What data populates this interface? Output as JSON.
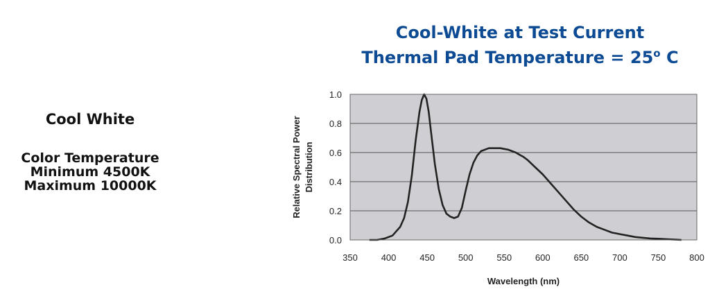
{
  "left_panel": {
    "heading": "Cool White",
    "lines": [
      "Color Temperature",
      "Minimum 4500K",
      "Maximum 10000K"
    ]
  },
  "chart_data": {
    "type": "line",
    "title_line1": "Cool-White at Test Current",
    "title_line2_text": "Thermal Pad Temperature = 25",
    "title_line2_sup": "o",
    "title_line2_tail": " C",
    "xlabel": "Wavelength (nm)",
    "ylabel_line1": "Relative Spectral Power",
    "ylabel_line2": "Distribution",
    "xlim": [
      350,
      800
    ],
    "ylim": [
      0,
      1.0
    ],
    "x_ticks": [
      350,
      400,
      450,
      500,
      550,
      600,
      650,
      700,
      750,
      800
    ],
    "y_ticks": [
      0.0,
      0.2,
      0.4,
      0.6,
      0.8,
      1.0
    ],
    "y_tick_labels": [
      "0.0",
      "0.2",
      "0.4",
      "0.6",
      "0.8",
      "1.0"
    ],
    "plot_background": "#cfcfd3",
    "line_color": "#222222",
    "grid": "horizontal",
    "series": [
      {
        "x": [
          375,
          385,
          395,
          405,
          415,
          420,
          425,
          430,
          435,
          440,
          443,
          446,
          449,
          452,
          455,
          460,
          465,
          470,
          475,
          480,
          485,
          490,
          495,
          500,
          505,
          510,
          515,
          520,
          525,
          530,
          535,
          540,
          545,
          550,
          555,
          560,
          565,
          570,
          575,
          580,
          590,
          600,
          610,
          620,
          630,
          640,
          650,
          660,
          670,
          680,
          690,
          700,
          710,
          720,
          730,
          740,
          750,
          760,
          770,
          780
        ],
        "y": [
          0.0,
          0.0,
          0.01,
          0.03,
          0.09,
          0.15,
          0.26,
          0.44,
          0.68,
          0.88,
          0.96,
          1.0,
          0.97,
          0.88,
          0.74,
          0.52,
          0.35,
          0.24,
          0.18,
          0.16,
          0.15,
          0.16,
          0.22,
          0.34,
          0.45,
          0.53,
          0.58,
          0.61,
          0.62,
          0.63,
          0.63,
          0.63,
          0.63,
          0.625,
          0.62,
          0.61,
          0.6,
          0.585,
          0.57,
          0.55,
          0.5,
          0.45,
          0.39,
          0.33,
          0.27,
          0.21,
          0.16,
          0.12,
          0.09,
          0.07,
          0.05,
          0.04,
          0.03,
          0.02,
          0.015,
          0.01,
          0.008,
          0.005,
          0.003,
          0.0
        ]
      }
    ]
  }
}
